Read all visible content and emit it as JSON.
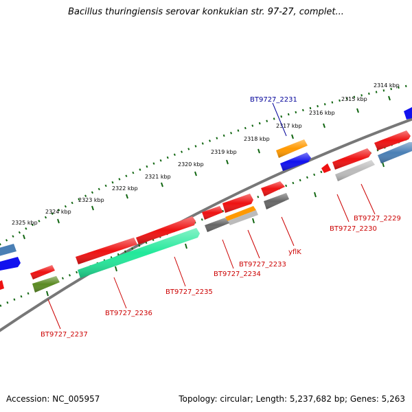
{
  "title": "Bacillus thuringiensis serovar konkukian str. 97-27, complet...",
  "accession": "Accession: NC_005957",
  "summary": "Topology: circular; Length: 5,237,682 bp; Genes: 5,263",
  "kbp_labels": [
    "2314 kbp",
    "2315 kbp",
    "2316 kbp",
    "2317 kbp",
    "2318 kbp",
    "2319 kbp",
    "2320 kbp",
    "2321 kbp",
    "2322 kbp",
    "2323 kbp",
    "2324 kbp",
    "2325 kbp"
  ],
  "gene_labels": [
    "BT9727_2231",
    "BT9727_2229",
    "BT9727_2230",
    "yflK",
    "BT9727_2233",
    "BT9727_2234",
    "BT9727_2235",
    "BT9727_2236",
    "BT9727_2237"
  ],
  "colors": {
    "red": "#ee1111",
    "blue": "#1111ee",
    "orange": "#ff9900",
    "steelblue": "#4a7fb5",
    "gray": "#666666",
    "lightgray": "#bbbbbb",
    "olive": "#5a8a22",
    "aqua": "#22e89a",
    "backbone": "#777777",
    "ticks": "#116611",
    "label": "#cc0000",
    "selected_label": "#000099"
  }
}
